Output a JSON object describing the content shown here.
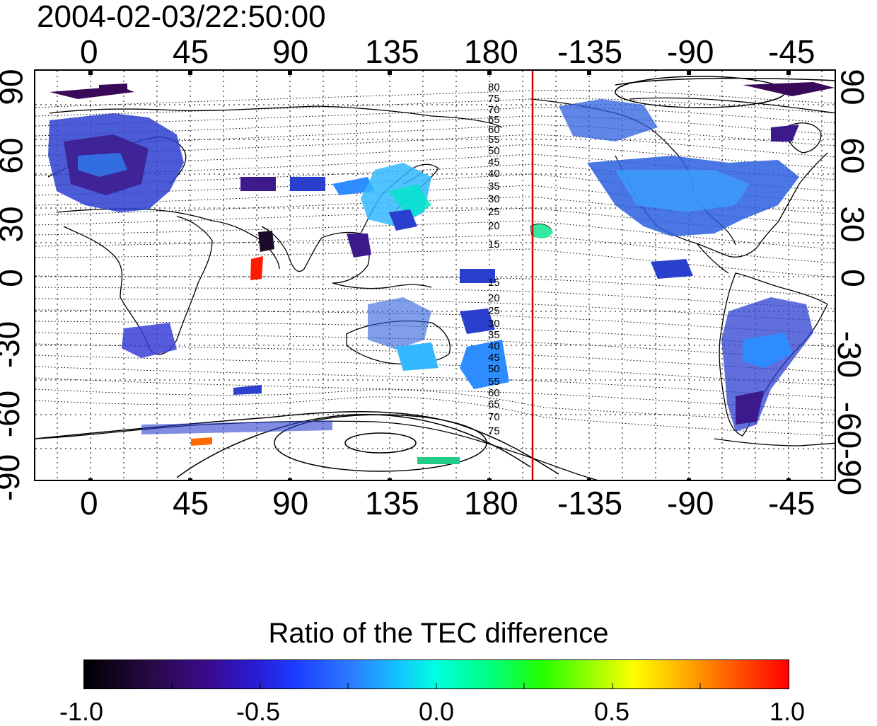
{
  "header": {
    "timestamp": "2004-02-03/22:50:00"
  },
  "map": {
    "longitude_ticks_top": [
      "0",
      "45",
      "90",
      "135",
      "180",
      "-135",
      "-90",
      "-45"
    ],
    "longitude_ticks_bottom": [
      "0",
      "45",
      "90",
      "135",
      "180",
      "-135",
      "-90",
      "-45"
    ],
    "latitude_ticks_left": [
      "90",
      "60",
      "30",
      "0",
      "-30",
      "-60",
      "-90"
    ],
    "latitude_ticks_right": [
      "90",
      "60",
      "30",
      "0",
      "-30",
      "-60",
      "-90"
    ],
    "contour_labels_north": [
      "80",
      "75",
      "70",
      "65",
      "60",
      "55",
      "50",
      "45",
      "40",
      "35",
      "30",
      "25",
      "20",
      "15"
    ],
    "contour_labels_south": [
      "15",
      "20",
      "25",
      "30",
      "35",
      "40",
      "45",
      "50",
      "55",
      "60",
      "65",
      "70",
      "75"
    ],
    "marker_line_color": "#d40000",
    "coastline_color": "#000000"
  },
  "colorbar": {
    "title": "Ratio of the TEC difference",
    "tick_labels": [
      "-1.0",
      "-0.5",
      "0.0",
      "0.5",
      "1.0"
    ],
    "range": [
      -1.0,
      1.0
    ]
  }
}
